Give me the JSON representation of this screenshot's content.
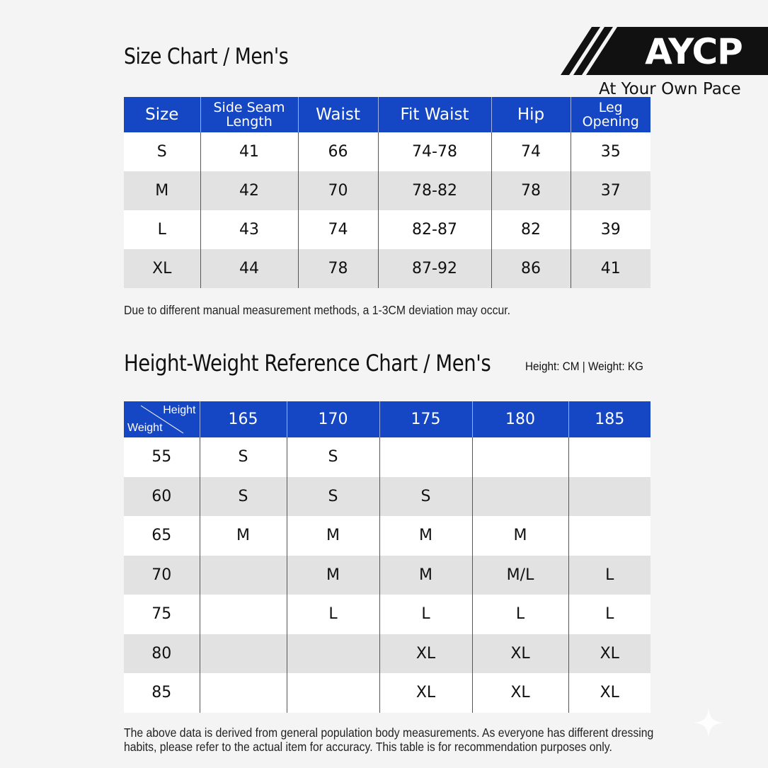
{
  "size_chart": {
    "title": "Size Chart / Men's",
    "columns": [
      "Size",
      "Side Seam Length",
      "Waist",
      "Fit Waist",
      "Hip",
      "Leg Opening"
    ],
    "column_lines": [
      [
        "Size"
      ],
      [
        "Side Seam",
        "Length"
      ],
      [
        "Waist"
      ],
      [
        "Fit Waist"
      ],
      [
        "Hip"
      ],
      [
        "Leg",
        "Opening"
      ]
    ],
    "rows": [
      [
        "S",
        "41",
        "66",
        "74-78",
        "74",
        "35"
      ],
      [
        "M",
        "42",
        "70",
        "78-82",
        "78",
        "37"
      ],
      [
        "L",
        "43",
        "74",
        "82-87",
        "82",
        "39"
      ],
      [
        "XL",
        "44",
        "78",
        "87-92",
        "86",
        "41"
      ]
    ],
    "note": "Due to different manual measurement methods, a 1-3CM deviation may occur."
  },
  "height_weight_chart": {
    "title": "Height-Weight Reference Chart / Men's",
    "units": "Height: CM | Weight: KG",
    "corner_top": "Height",
    "corner_bottom": "Weight",
    "heights": [
      "165",
      "170",
      "175",
      "180",
      "185"
    ],
    "rows": [
      {
        "weight": "55",
        "sizes": [
          "S",
          "S",
          "",
          "",
          ""
        ]
      },
      {
        "weight": "60",
        "sizes": [
          "S",
          "S",
          "S",
          "",
          ""
        ]
      },
      {
        "weight": "65",
        "sizes": [
          "M",
          "M",
          "M",
          "M",
          ""
        ]
      },
      {
        "weight": "70",
        "sizes": [
          "",
          "M",
          "M",
          "M/L",
          "L"
        ]
      },
      {
        "weight": "75",
        "sizes": [
          "",
          "L",
          "L",
          "L",
          "L"
        ]
      },
      {
        "weight": "80",
        "sizes": [
          "",
          "",
          "XL",
          "XL",
          "XL"
        ]
      },
      {
        "weight": "85",
        "sizes": [
          "",
          "",
          "XL",
          "XL",
          "XL"
        ]
      }
    ],
    "note_lines": [
      "The above data is derived from general population body measurements. As everyone has different dressing",
      "habits, please refer to the actual item for accuracy. This table is for recommendation purposes only."
    ]
  },
  "brand": {
    "logo_text": "AYCP",
    "tagline": "At Your Own Pace"
  },
  "colors": {
    "header_blue": "#1546c4",
    "row_alt": "#e2e2e2",
    "background": "#f4f4f4"
  }
}
